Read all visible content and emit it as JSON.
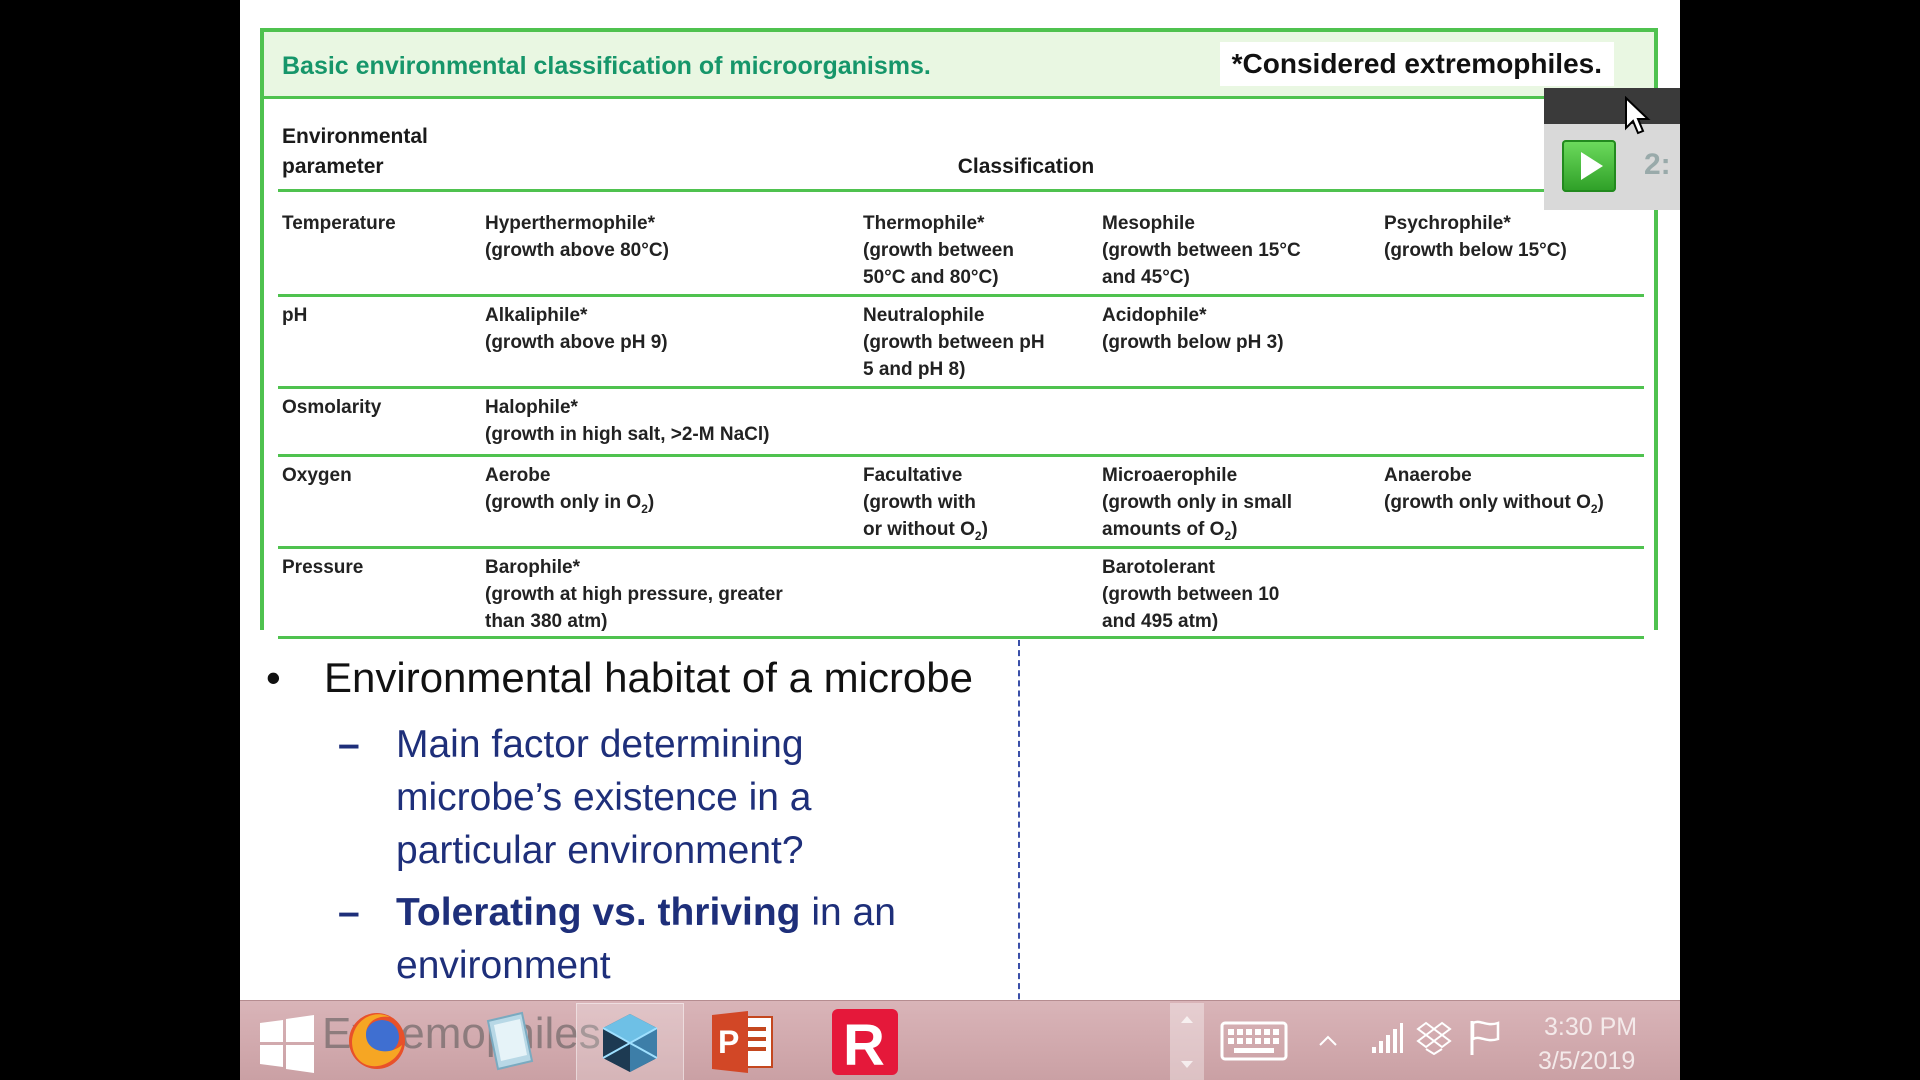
{
  "table": {
    "title": "Basic environmental classification of microorganisms.",
    "note": "*Considered extremophiles.",
    "header_param_line1": "Environmental",
    "header_param_line2": "parameter",
    "header_class": "Classification",
    "rows": [
      {
        "param": "Temperature",
        "cells": [
          [
            "Hyperthermophile*",
            "(growth above 80°C)"
          ],
          [
            "Thermophile*",
            "(growth between",
            "50°C and 80°C)"
          ],
          [
            "Mesophile",
            "(growth between 15°C",
            "and 45°C)"
          ],
          [
            "Psychrophile*",
            "(growth below 15°C)"
          ]
        ]
      },
      {
        "param": "pH",
        "cells": [
          [
            "Alkaliphile*",
            "(growth above pH 9)"
          ],
          [
            "Neutralophile",
            "(growth between pH",
            "5 and pH 8)"
          ],
          [
            "Acidophile*",
            "(growth below pH 3)"
          ],
          []
        ]
      },
      {
        "param": "Osmolarity",
        "cells": [
          [
            "Halophile*",
            "(growth in high salt, >2-M NaCl)"
          ],
          [],
          [],
          []
        ]
      },
      {
        "param": "Oxygen",
        "cells": [
          [
            "Aerobe",
            "(growth only in O",
            "2",
            ")"
          ],
          [
            "Facultative",
            "(growth with",
            "or without O",
            "2",
            ")"
          ],
          [
            "Microaerophile",
            "(growth only in small",
            "amounts of O",
            "2",
            ")"
          ],
          [
            "Anaerobe",
            "(growth only without O",
            "2",
            ")"
          ]
        ]
      },
      {
        "param": "Pressure",
        "cells": [
          [
            "Barophile*",
            "(growth at high pressure, greater",
            "than 380 atm)"
          ],
          [],
          [
            "Barotolerant",
            "(growth between 10",
            "and 495 atm)"
          ],
          []
        ]
      }
    ]
  },
  "bullets": {
    "main": "Environmental habitat of a microbe",
    "sub1": "Main factor determining microbe’s existence in a particular environment?",
    "sub2_bold": "Tolerating vs. thriving",
    "sub2_rest": " in an environment",
    "dash": "–",
    "dot": "•"
  },
  "overlay": {
    "counter": "2:"
  },
  "taskbar": {
    "ghost_text": "Extremophiles",
    "clock_time": "3:30 PM",
    "clock_date": "3/5/2019",
    "icons": [
      "windows-start-icon",
      "firefox-icon",
      "sketch-app-icon",
      "powerpoint-icon",
      "r-app-icon",
      "keyboard-icon",
      "tray-arrow-icon",
      "signal-icon",
      "dropbox-icon",
      "flag-icon"
    ]
  }
}
